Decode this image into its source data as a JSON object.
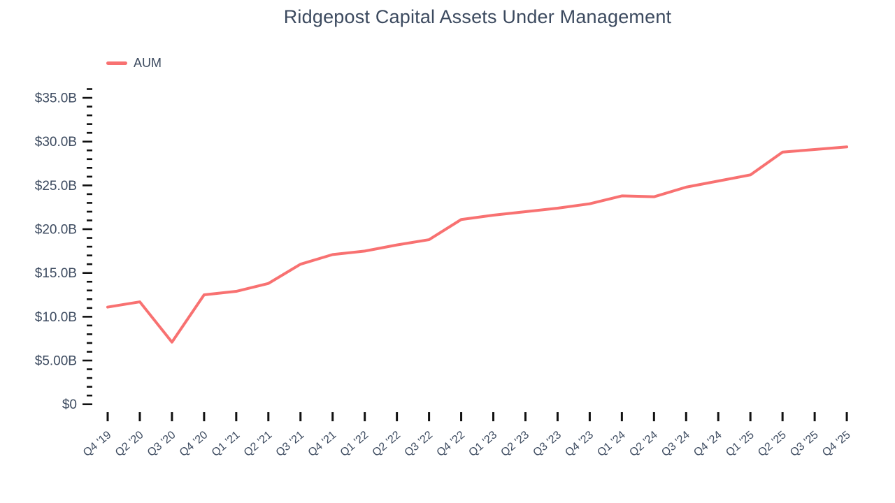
{
  "title": "Ridgepost Capital Assets Under Management",
  "legend": {
    "label": "AUM"
  },
  "colors": {
    "line": "#F87171",
    "text": "#3C4A5F",
    "tick": "#111111",
    "background": "#FFFFFF"
  },
  "chart_data": {
    "type": "line",
    "title": "Ridgepost Capital Assets Under Management",
    "xlabel": "",
    "ylabel": "",
    "grid": false,
    "legend_position": "top-left",
    "categories": [
      "Q4 '19",
      "Q2 '20",
      "Q3 '20",
      "Q4 '20",
      "Q1 '21",
      "Q2 '21",
      "Q3 '21",
      "Q4 '21",
      "Q1 '22",
      "Q2 '22",
      "Q3 '22",
      "Q4 '22",
      "Q1 '23",
      "Q2 '23",
      "Q3 '23",
      "Q4 '23",
      "Q1 '24",
      "Q2 '24",
      "Q3 '24",
      "Q4 '24",
      "Q1 '25",
      "Q2 '25",
      "Q3 '25",
      "Q4 '25"
    ],
    "series": [
      {
        "name": "AUM",
        "unit": "USD billions",
        "values": [
          11.1,
          11.7,
          7.1,
          12.5,
          12.9,
          13.8,
          16.0,
          17.1,
          17.5,
          18.2,
          18.8,
          21.1,
          21.6,
          22.0,
          22.4,
          22.9,
          23.8,
          23.7,
          24.8,
          25.5,
          26.2,
          28.8,
          29.1,
          29.4
        ]
      }
    ],
    "y_axis": {
      "min": 0,
      "max": 36,
      "major_step": 5,
      "minor_step": 1,
      "ticks": [
        {
          "value": 0,
          "label": "$0"
        },
        {
          "value": 5,
          "label": "$5.00B"
        },
        {
          "value": 10,
          "label": "$10.0B"
        },
        {
          "value": 15,
          "label": "$15.0B"
        },
        {
          "value": 20,
          "label": "$20.0B"
        },
        {
          "value": 25,
          "label": "$25.0B"
        },
        {
          "value": 30,
          "label": "$30.0B"
        },
        {
          "value": 35,
          "label": "$35.0B"
        }
      ]
    }
  }
}
